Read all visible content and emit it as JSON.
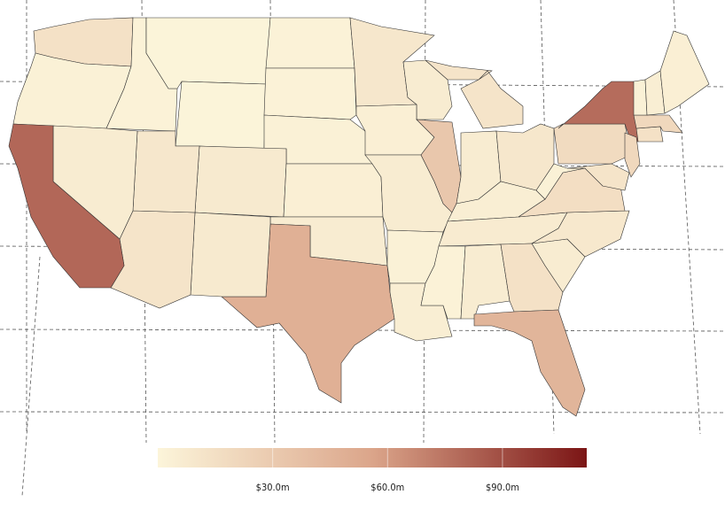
{
  "chart_data": {
    "type": "choropleth",
    "values": [
      14,
      3,
      2,
      1,
      1,
      2,
      2,
      3,
      8,
      4,
      6,
      48,
      8,
      12,
      10,
      6,
      80,
      10,
      6,
      4,
      6,
      3,
      5,
      32,
      12,
      6,
      10,
      5,
      7,
      2,
      6,
      14,
      45,
      6,
      9,
      16,
      3,
      18,
      78,
      12,
      20,
      14,
      20,
      3,
      5,
      4
    ],
    "colorscale": [
      "#fcf5da",
      "#dba58a",
      "#7b1515"
    ],
    "clim": [
      0,
      112
    ],
    "ticks": [
      {
        "value": 30,
        "label": "$30.0m"
      },
      {
        "value": 60,
        "label": "$60.0m"
      },
      {
        "value": 90,
        "label": "$90.0m"
      }
    ]
  }
}
